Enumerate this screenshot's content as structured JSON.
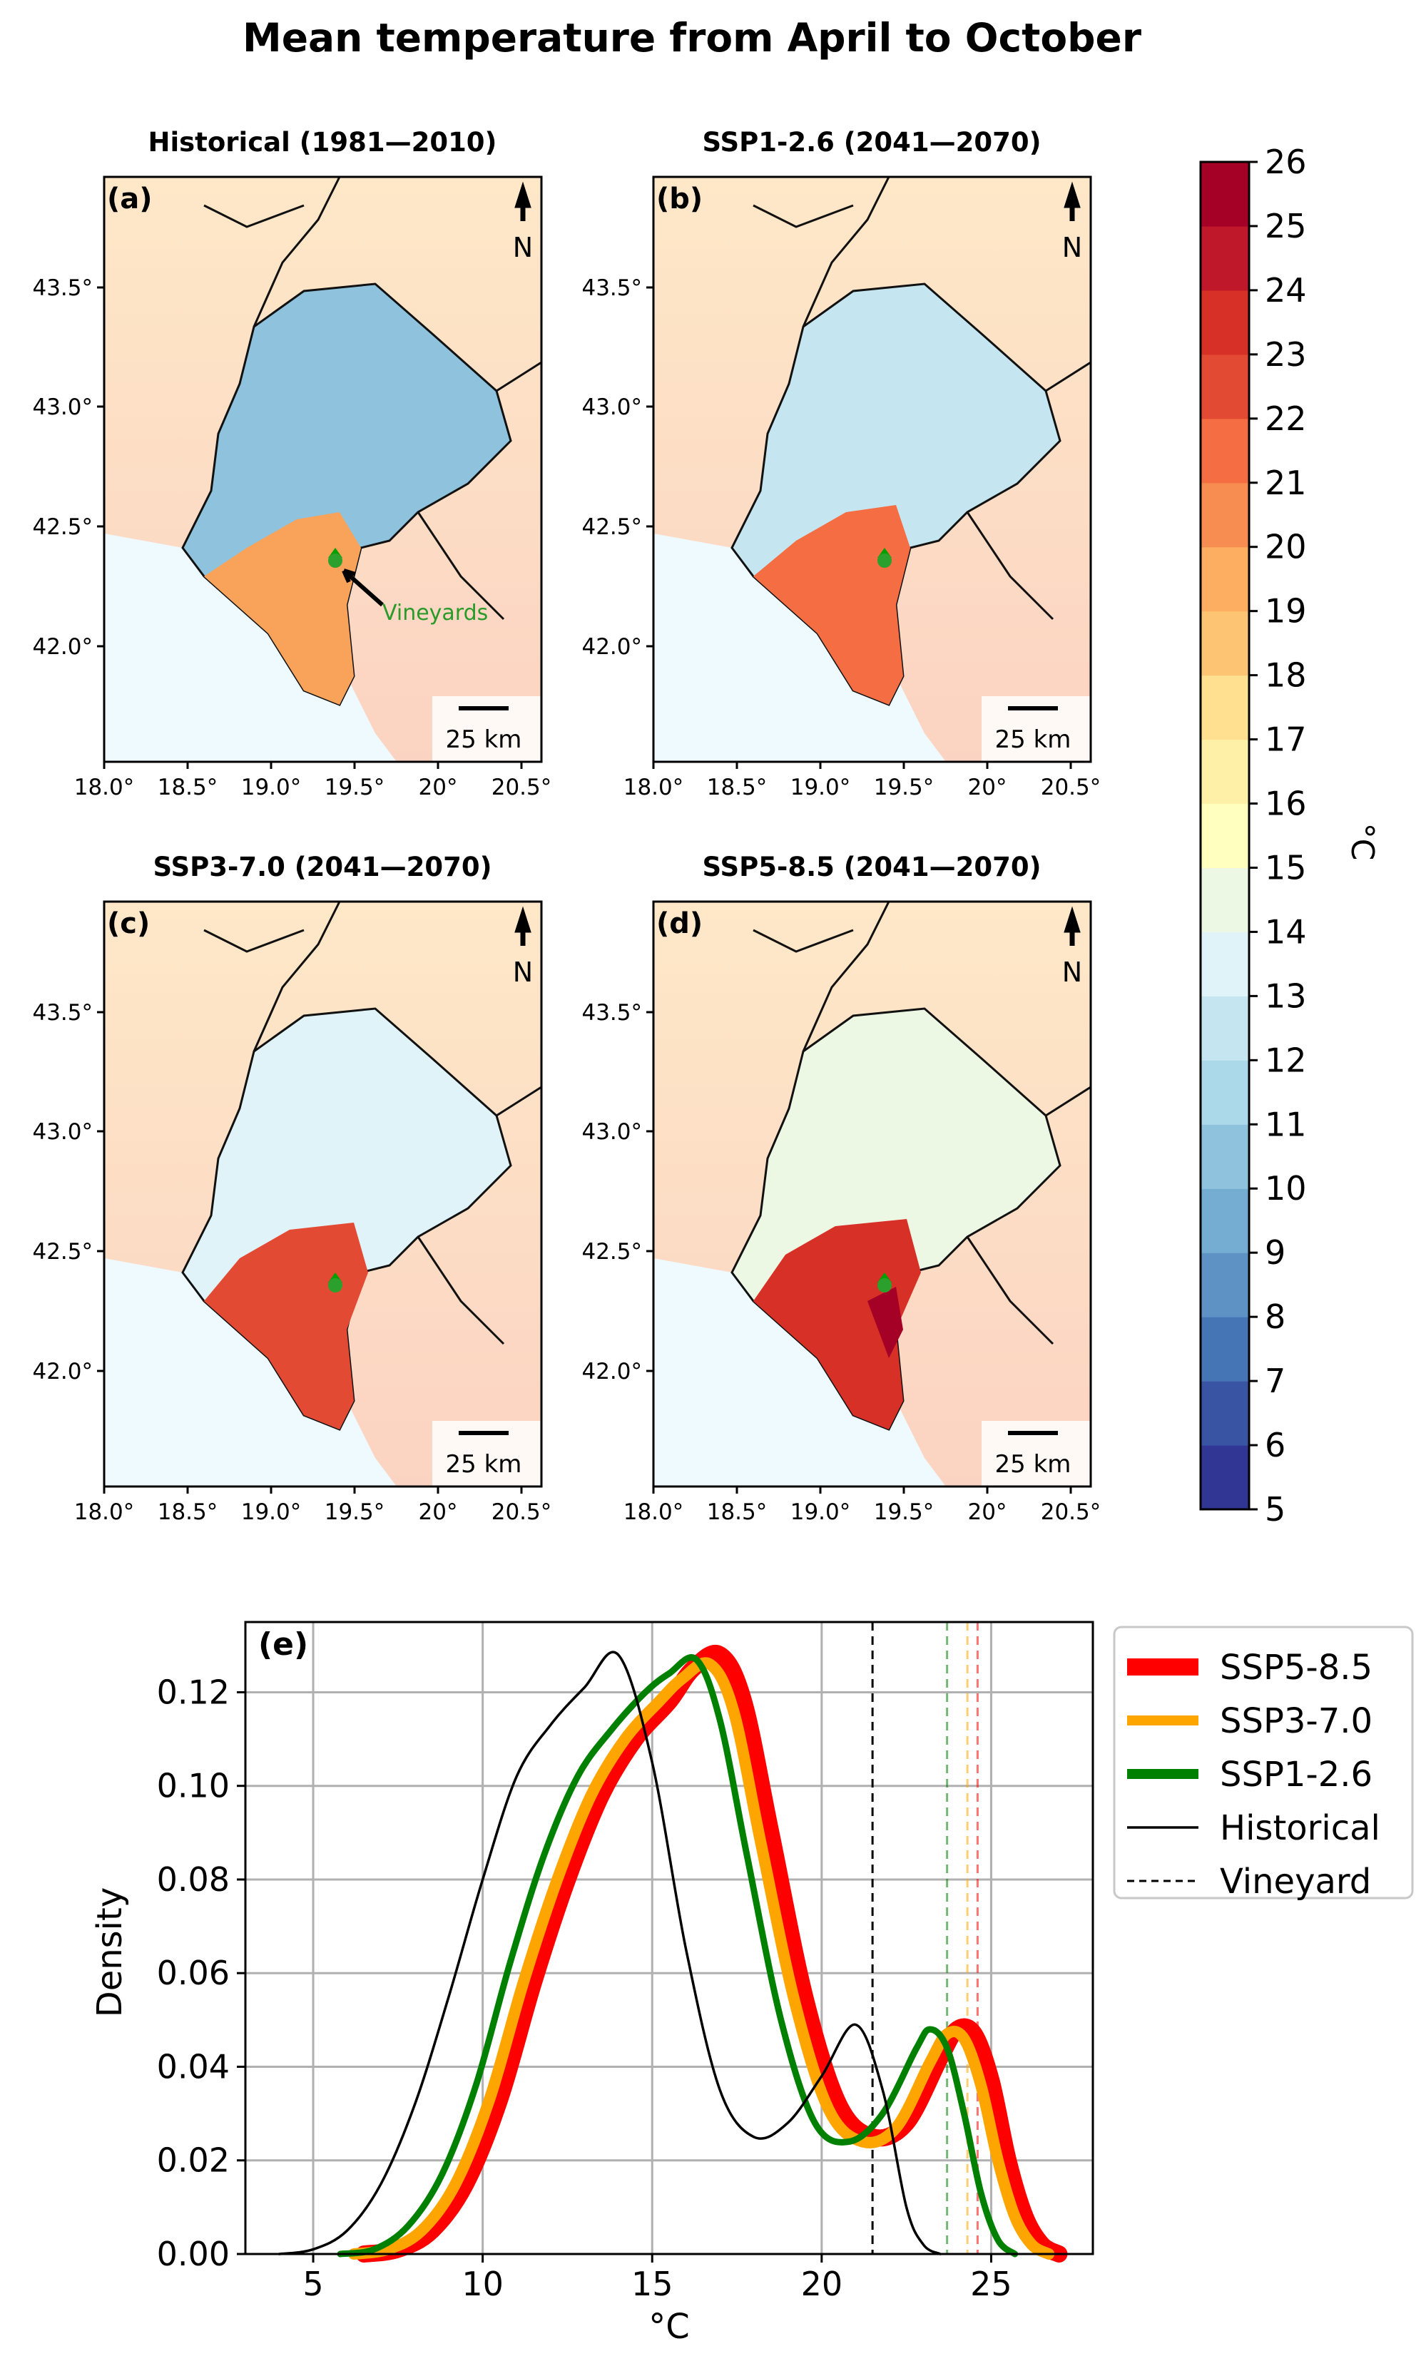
{
  "figure": {
    "title": "Mean temperature from April to October"
  },
  "maps": {
    "panels": [
      {
        "letter": "(a)",
        "title": "Historical (1981—2010)",
        "scenario": "historical"
      },
      {
        "letter": "(b)",
        "title": "SSP1-2.6 (2041—2070)",
        "scenario": "ssp126"
      },
      {
        "letter": "(c)",
        "title": "SSP3-7.0  (2041—2070)",
        "scenario": "ssp370"
      },
      {
        "letter": "(d)",
        "title": "SSP5-8.5 (2041—2070)",
        "scenario": "ssp585"
      }
    ],
    "lat_ticks": [
      "43.5°",
      "43.0°",
      "42.5°",
      "42.0°"
    ],
    "lon_ticks": [
      "18.0°",
      "18.5°",
      "19.0°",
      "19.5°",
      "20°",
      "20.5°"
    ],
    "north_label": "N",
    "scalebar_label": "25 km",
    "vineyard_label": "Vineyards"
  },
  "colorbar": {
    "unit": "°C",
    "ticks": [
      "5",
      "6",
      "7",
      "8",
      "9",
      "10",
      "11",
      "12",
      "13",
      "14",
      "15",
      "16",
      "17",
      "18",
      "19",
      "20",
      "21",
      "22",
      "23",
      "24",
      "25",
      "26"
    ],
    "colors": [
      "#313695",
      "#3a54a4",
      "#4575b4",
      "#5e92c4",
      "#74add1",
      "#8fc3dd",
      "#abd9e9",
      "#c5e6f0",
      "#e0f3f8",
      "#edf8e4",
      "#ffffbf",
      "#fff0a8",
      "#fee090",
      "#fdc474",
      "#fdae61",
      "#f88d51",
      "#f46d43",
      "#e34a33",
      "#d73027",
      "#c0182b",
      "#a50026"
    ]
  },
  "chart_data": {
    "type": "line",
    "panel_letter": "(e)",
    "title": "",
    "xlabel": "°C",
    "ylabel": "Density",
    "xlim": [
      3,
      28
    ],
    "ylim": [
      0,
      0.135
    ],
    "xticks": [
      5,
      10,
      15,
      20,
      25
    ],
    "yticks": [
      0.0,
      0.02,
      0.04,
      0.06,
      0.08,
      0.1,
      0.12
    ],
    "ytick_labels": [
      "0.00",
      "0.02",
      "0.04",
      "0.06",
      "0.08",
      "0.10",
      "0.12"
    ],
    "grid": true,
    "legend_position": "right",
    "series": [
      {
        "name": "SSP5-8.5",
        "color": "#ff0000",
        "x": [
          6.5,
          7.5,
          8.5,
          9.5,
          10.5,
          11.5,
          12.5,
          13.5,
          14.5,
          15.5,
          16.2,
          17.0,
          17.7,
          18.5,
          19.5,
          20.5,
          21.5,
          22.5,
          23.5,
          24.0,
          24.5,
          25.0,
          25.5,
          26.0,
          26.5,
          27.0
        ],
        "y": [
          0.0,
          0.001,
          0.005,
          0.015,
          0.033,
          0.058,
          0.08,
          0.098,
          0.11,
          0.118,
          0.125,
          0.128,
          0.118,
          0.09,
          0.055,
          0.032,
          0.025,
          0.028,
          0.042,
          0.048,
          0.047,
          0.037,
          0.02,
          0.008,
          0.002,
          0.0
        ]
      },
      {
        "name": "SSP3-7.0",
        "color": "#ffa500",
        "x": [
          6.2,
          7.2,
          8.2,
          9.2,
          10.2,
          11.2,
          12.2,
          13.2,
          14.2,
          15.2,
          15.9,
          16.7,
          17.4,
          18.2,
          19.2,
          20.2,
          21.2,
          22.2,
          23.2,
          23.7,
          24.2,
          24.7,
          25.2,
          25.7,
          26.2,
          26.7
        ],
        "y": [
          0.0,
          0.001,
          0.005,
          0.015,
          0.033,
          0.058,
          0.08,
          0.098,
          0.11,
          0.118,
          0.123,
          0.126,
          0.116,
          0.088,
          0.054,
          0.031,
          0.024,
          0.027,
          0.041,
          0.047,
          0.046,
          0.036,
          0.02,
          0.008,
          0.002,
          0.0
        ]
      },
      {
        "name": "SSP1-2.6",
        "color": "#008000",
        "x": [
          5.8,
          6.8,
          7.8,
          8.8,
          9.8,
          10.8,
          11.8,
          12.8,
          13.8,
          14.8,
          15.5,
          16.3,
          17.0,
          17.8,
          18.8,
          19.8,
          20.8,
          21.8,
          22.8,
          23.2,
          23.7,
          24.2,
          24.7,
          25.2,
          25.7
        ],
        "y": [
          0.0,
          0.001,
          0.006,
          0.017,
          0.036,
          0.062,
          0.085,
          0.102,
          0.112,
          0.12,
          0.124,
          0.127,
          0.114,
          0.085,
          0.05,
          0.028,
          0.024,
          0.03,
          0.044,
          0.048,
          0.044,
          0.03,
          0.013,
          0.003,
          0.0
        ]
      },
      {
        "name": "Historical",
        "color": "#000000",
        "x": [
          4.0,
          5.0,
          6.0,
          7.0,
          8.0,
          9.0,
          10.0,
          11.0,
          12.0,
          13.0,
          14.0,
          15.0,
          16.0,
          17.0,
          18.0,
          19.0,
          20.0,
          21.0,
          21.8,
          22.5,
          23.0,
          23.5
        ],
        "y": [
          0.0,
          0.001,
          0.005,
          0.015,
          0.032,
          0.055,
          0.08,
          0.102,
          0.113,
          0.121,
          0.128,
          0.105,
          0.065,
          0.035,
          0.025,
          0.028,
          0.038,
          0.049,
          0.035,
          0.01,
          0.002,
          0.0
        ]
      }
    ],
    "vlines": [
      {
        "name": "Historical",
        "x": 21.5,
        "color": "#000000"
      },
      {
        "name": "SSP1-2.6",
        "x": 23.7,
        "color": "#008000"
      },
      {
        "name": "SSP3-7.0",
        "x": 24.3,
        "color": "#ffa500"
      },
      {
        "name": "SSP5-8.5",
        "x": 24.6,
        "color": "#ff0000"
      }
    ],
    "legend": [
      {
        "label": "SSP5-8.5",
        "color": "#ff0000",
        "style": "thick"
      },
      {
        "label": "SSP3-7.0",
        "color": "#ffa500",
        "style": "medium"
      },
      {
        "label": "SSP1-2.6",
        "color": "#008000",
        "style": "medium"
      },
      {
        "label": "Historical",
        "color": "#000000",
        "style": "thin"
      },
      {
        "label": "Vineyard",
        "color": "#000000",
        "style": "dashed"
      }
    ]
  }
}
